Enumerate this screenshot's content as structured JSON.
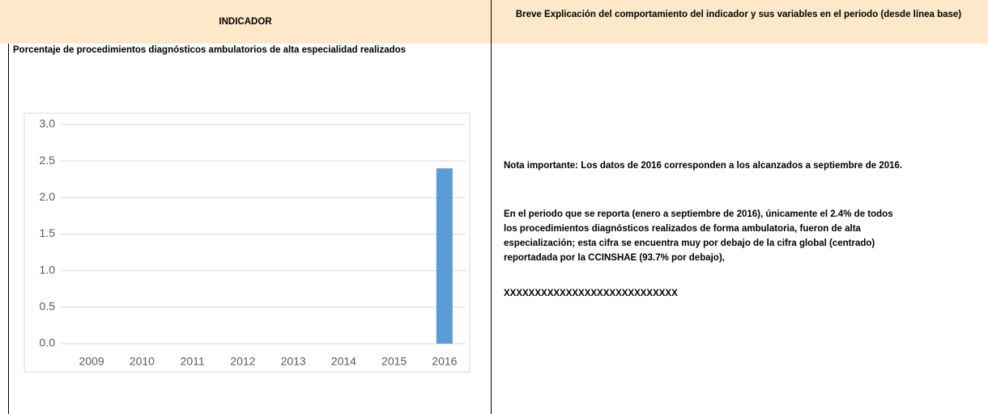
{
  "header": {
    "left": "INDICADOR",
    "right": "Breve Explicación del comportamiento del indicador y sus variables en el periodo (desde línea base)"
  },
  "indicator_name": "Porcentaje de procedimientos diagnósticos ambulatorios de alta especialidad realizados",
  "explanation": {
    "note": "Nota importante:  Los datos de 2016 corresponden a los alcanzados a septiembre de 2016.",
    "paragraph_lines": [
      "En el periodo que se reporta (enero a septiembre de 2016), únicamente el 2.4% de todos",
      "los procedimientos diagnósticos realizados de forma ambulatoria, fueron de alta",
      "especialización; esta cifra se encuentra muy por debajo de la cifra global (centrado)",
      "reportadada por la CCINSHAE (93.7% por debajo),"
    ],
    "placeholder": "XXXXXXXXXXXXXXXXXXXXXXXXXXXX"
  },
  "chart_data": {
    "type": "bar",
    "categories": [
      "2009",
      "2010",
      "2011",
      "2012",
      "2013",
      "2014",
      "2015",
      "2016"
    ],
    "values": [
      null,
      null,
      null,
      null,
      null,
      null,
      null,
      2.4
    ],
    "color": "#5b9bd5",
    "ylim": [
      0,
      3
    ],
    "yticks": [
      {
        "value": 0,
        "label": "0.0"
      },
      0.5,
      {
        "value": 1,
        "label": "1.0"
      },
      1.5,
      {
        "value": 2,
        "label": "2.0"
      },
      2.5,
      {
        "value": 3,
        "label": "3.0"
      }
    ],
    "grid": true
  }
}
